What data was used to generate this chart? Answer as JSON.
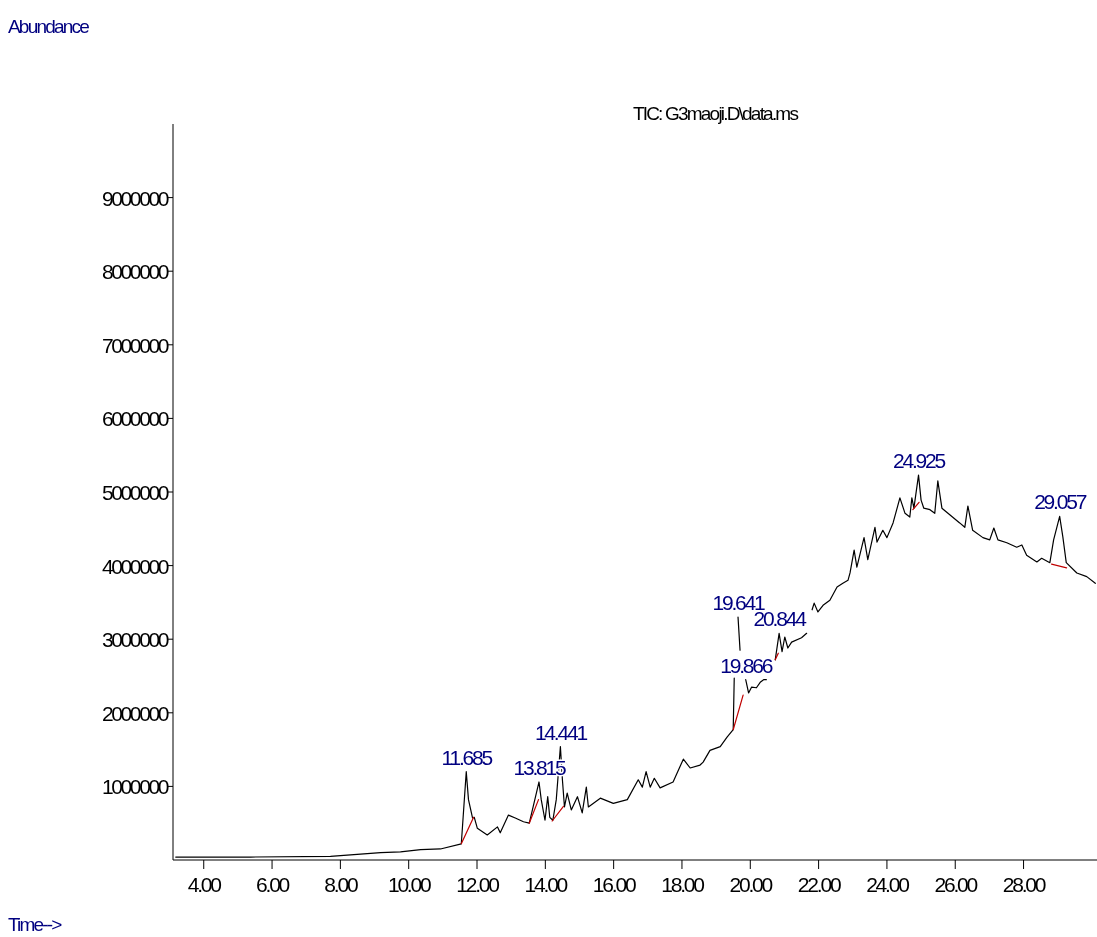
{
  "chart_data": {
    "type": "line",
    "title": "TIC: G3maoji.D\\data.ms",
    "xlabel": "Time-->",
    "ylabel": "Abundance",
    "xlim": [
      3.1,
      30.15
    ],
    "ylim": [
      0,
      10000000
    ],
    "xticks": [
      {
        "value": 4,
        "label": "4.00"
      },
      {
        "value": 6,
        "label": "6.00"
      },
      {
        "value": 8,
        "label": "8.00"
      },
      {
        "value": 10,
        "label": "10.00"
      },
      {
        "value": 12,
        "label": "12.00"
      },
      {
        "value": 14,
        "label": "14.00"
      },
      {
        "value": 16,
        "label": "16.00"
      },
      {
        "value": 18,
        "label": "18.00"
      },
      {
        "value": 20,
        "label": "20.00"
      },
      {
        "value": 22,
        "label": "22.00"
      },
      {
        "value": 24,
        "label": "24.00"
      },
      {
        "value": 26,
        "label": "26.00"
      },
      {
        "value": 28,
        "label": "28.00"
      }
    ],
    "yticks": [
      1000000,
      2000000,
      3000000,
      4000000,
      5000000,
      6000000,
      7000000,
      8000000,
      9000000
    ],
    "grid": false,
    "marker": "none",
    "line_style": "solid",
    "series": [
      {
        "color": "#000000",
        "x": [
          3.18,
          5.37,
          7.71,
          8.59,
          9.18,
          9.76,
          10.35,
          10.93,
          11.54,
          11.685,
          11.75,
          11.87,
          11.92,
          12.01,
          12.3,
          12.6,
          12.68,
          12.92,
          13.12,
          13.36,
          13.53,
          13.815,
          13.88,
          13.99,
          14.07,
          14.13,
          14.22,
          14.32,
          14.441,
          14.5,
          14.56,
          14.64,
          14.76,
          14.94,
          15.08,
          15.2,
          15.26,
          15.61,
          15.99,
          16.4,
          16.72,
          16.84,
          16.95,
          17.07,
          17.19,
          17.36,
          17.74,
          18.04,
          18.24,
          18.53,
          18.62,
          18.82,
          19.12,
          19.32,
          19.5,
          19.53,
          19.58,
          19.641,
          19.7,
          19.78,
          19.866,
          19.95,
          20.04,
          20.18,
          20.3,
          20.39,
          20.47,
          20.6,
          20.73,
          20.844,
          20.93,
          21.01,
          21.1,
          21.21,
          21.5,
          21.65,
          21.73,
          21.81,
          21.87,
          21.98,
          22.13,
          22.33,
          22.54,
          22.71,
          22.86,
          22.92,
          23.04,
          23.12,
          23.33,
          23.44,
          23.65,
          23.71,
          23.88,
          24.0,
          24.18,
          24.38,
          24.53,
          24.67,
          24.73,
          24.79,
          24.925,
          25.0,
          25.08,
          25.26,
          25.4,
          25.49,
          25.61,
          25.84,
          26.13,
          26.28,
          26.37,
          26.51,
          26.81,
          27.01,
          27.13,
          27.25,
          27.51,
          27.8,
          27.95,
          28.09,
          28.39,
          28.53,
          28.77,
          28.88,
          29.057,
          29.15,
          29.25,
          29.56,
          29.85,
          30.1
        ],
        "values": [
          40000,
          40000,
          50000,
          80000,
          100000,
          110000,
          140000,
          150000,
          220000,
          1200000,
          820000,
          570000,
          580000,
          430000,
          340000,
          450000,
          370000,
          610000,
          570000,
          520000,
          500000,
          1060000,
          820000,
          540000,
          860000,
          580000,
          540000,
          820000,
          1540000,
          1090000,
          720000,
          910000,
          680000,
          860000,
          640000,
          990000,
          720000,
          840000,
          770000,
          820000,
          1090000,
          990000,
          1200000,
          990000,
          1110000,
          980000,
          1060000,
          1370000,
          1250000,
          1290000,
          1330000,
          1490000,
          1540000,
          1670000,
          1770000,
          2470000,
          null,
          3300000,
          2850000,
          null,
          2450000,
          2270000,
          2350000,
          2340000,
          2420000,
          2450000,
          2450000,
          null,
          2720000,
          3080000,
          2830000,
          3030000,
          2880000,
          2960000,
          3020000,
          3080000,
          null,
          3400000,
          3490000,
          3370000,
          3460000,
          3530000,
          3710000,
          3760000,
          3800000,
          3900000,
          4210000,
          3980000,
          4380000,
          4080000,
          4520000,
          4320000,
          4480000,
          4380000,
          4580000,
          4920000,
          4710000,
          4660000,
          4920000,
          4780000,
          5230000,
          4890000,
          4780000,
          4760000,
          4710000,
          5150000,
          4780000,
          4690000,
          4580000,
          4520000,
          4810000,
          4480000,
          4380000,
          4350000,
          4510000,
          4350000,
          4310000,
          4250000,
          4280000,
          4140000,
          4050000,
          4100000,
          4040000,
          4350000,
          4670000,
          4390000,
          4040000,
          3900000,
          3850000,
          3760000
        ]
      },
      {
        "color": "#c00000",
        "x": [
          11.54,
          11.9,
          11.95,
          13.53,
          13.8,
          13.9,
          14.2,
          14.53,
          14.6,
          19.5,
          19.79,
          19.85,
          20.73,
          20.82,
          20.9,
          24.76,
          24.94,
          25.0,
          28.82,
          29.26
        ],
        "values": [
          220000,
          580000,
          null,
          500000,
          820000,
          null,
          530000,
          730000,
          null,
          1770000,
          2240000,
          null,
          2720000,
          2810000,
          null,
          4760000,
          4860000,
          null,
          4020000,
          3970000
        ]
      }
    ],
    "annotations": [
      {
        "text": "11.685",
        "x": 11.685,
        "y": 1200000
      },
      {
        "text": "13.815",
        "x": 13.815,
        "y": 1060000
      },
      {
        "text": "14.441",
        "x": 14.441,
        "y": 1540000
      },
      {
        "text": "19.641",
        "x": 19.641,
        "y": 3300000
      },
      {
        "text": "19.866",
        "x": 19.866,
        "y": 2450000
      },
      {
        "text": "20.844",
        "x": 20.844,
        "y": 3080000
      },
      {
        "text": "24.925",
        "x": 24.925,
        "y": 5230000
      },
      {
        "text": "29.057",
        "x": 29.057,
        "y": 4670000
      }
    ]
  }
}
